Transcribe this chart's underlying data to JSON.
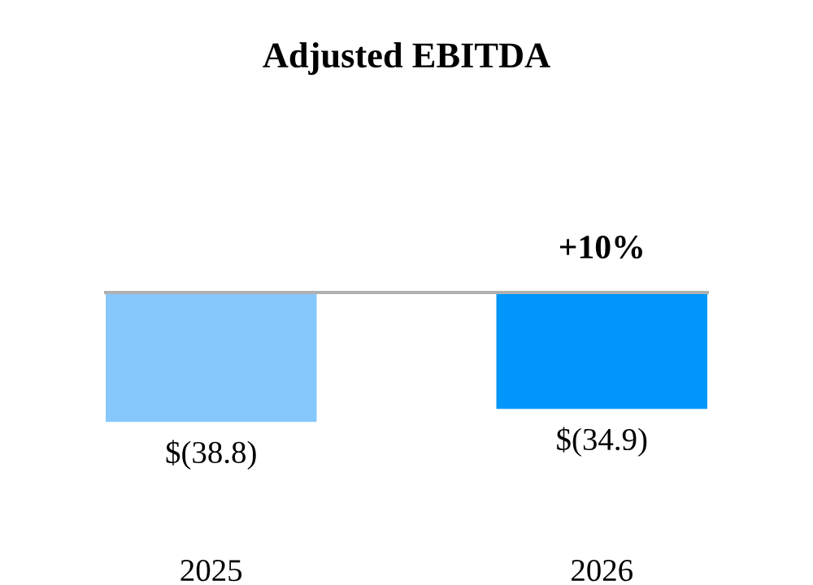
{
  "chart_data": {
    "type": "bar",
    "title": "Adjusted EBITDA",
    "categories": [
      "2025",
      "2026"
    ],
    "values": [
      -38.8,
      -34.9
    ],
    "colors": [
      "#87c8fc",
      "#0096fa"
    ],
    "value_labels": [
      "$(38.8)",
      "$(34.9)"
    ],
    "annotations": [
      "+10%"
    ],
    "tick_labels": "x",
    "grid": false,
    "legend": false
  }
}
